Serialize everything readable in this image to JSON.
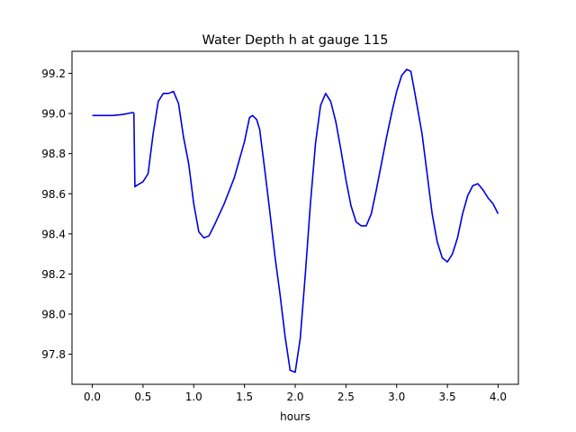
{
  "chart_data": {
    "type": "line",
    "title": "Water Depth h at gauge 115",
    "xlabel": "hours",
    "ylabel": "",
    "xlim": [
      -0.2,
      4.2
    ],
    "ylim": [
      97.65,
      99.31
    ],
    "xticks": [
      0.0,
      0.5,
      1.0,
      1.5,
      2.0,
      2.5,
      3.0,
      3.5,
      4.0
    ],
    "xtick_labels": [
      "0.0",
      "0.5",
      "1.0",
      "1.5",
      "2.0",
      "2.5",
      "3.0",
      "3.5",
      "4.0"
    ],
    "yticks": [
      97.8,
      98.0,
      98.2,
      98.4,
      98.6,
      98.8,
      99.0,
      99.2
    ],
    "ytick_labels": [
      "97.8",
      "98.0",
      "98.2",
      "98.4",
      "98.6",
      "98.8",
      "99.0",
      "99.2"
    ],
    "grid": false,
    "series": [
      {
        "name": "",
        "color": "#0000e0",
        "x": [
          0.0,
          0.1,
          0.2,
          0.3,
          0.35,
          0.4,
          0.41,
          0.42,
          0.45,
          0.5,
          0.55,
          0.6,
          0.65,
          0.7,
          0.75,
          0.8,
          0.85,
          0.9,
          0.95,
          1.0,
          1.05,
          1.1,
          1.15,
          1.2,
          1.3,
          1.4,
          1.45,
          1.5,
          1.55,
          1.58,
          1.62,
          1.65,
          1.7,
          1.75,
          1.8,
          1.85,
          1.9,
          1.95,
          2.0,
          2.05,
          2.1,
          2.15,
          2.2,
          2.25,
          2.3,
          2.35,
          2.4,
          2.45,
          2.5,
          2.55,
          2.6,
          2.65,
          2.7,
          2.75,
          2.8,
          2.85,
          2.9,
          2.95,
          3.0,
          3.05,
          3.1,
          3.14,
          3.18,
          3.25,
          3.3,
          3.35,
          3.4,
          3.45,
          3.5,
          3.55,
          3.6,
          3.65,
          3.7,
          3.75,
          3.8,
          3.85,
          3.9,
          3.95,
          4.0
        ],
        "y": [
          98.99,
          98.99,
          98.99,
          98.995,
          99.0,
          99.005,
          99.0,
          98.635,
          98.645,
          98.66,
          98.7,
          98.9,
          99.06,
          99.1,
          99.1,
          99.11,
          99.05,
          98.88,
          98.75,
          98.55,
          98.41,
          98.38,
          98.39,
          98.44,
          98.55,
          98.68,
          98.77,
          98.86,
          98.98,
          98.99,
          98.97,
          98.92,
          98.72,
          98.51,
          98.29,
          98.1,
          97.89,
          97.72,
          97.71,
          97.88,
          98.2,
          98.55,
          98.85,
          99.04,
          99.1,
          99.06,
          98.96,
          98.82,
          98.67,
          98.54,
          98.46,
          98.44,
          98.44,
          98.5,
          98.62,
          98.75,
          98.88,
          99.0,
          99.11,
          99.19,
          99.22,
          99.21,
          99.1,
          98.9,
          98.7,
          98.5,
          98.36,
          98.28,
          98.26,
          98.3,
          98.38,
          98.5,
          98.59,
          98.64,
          98.65,
          98.62,
          98.58,
          98.55,
          98.5
        ]
      }
    ]
  }
}
